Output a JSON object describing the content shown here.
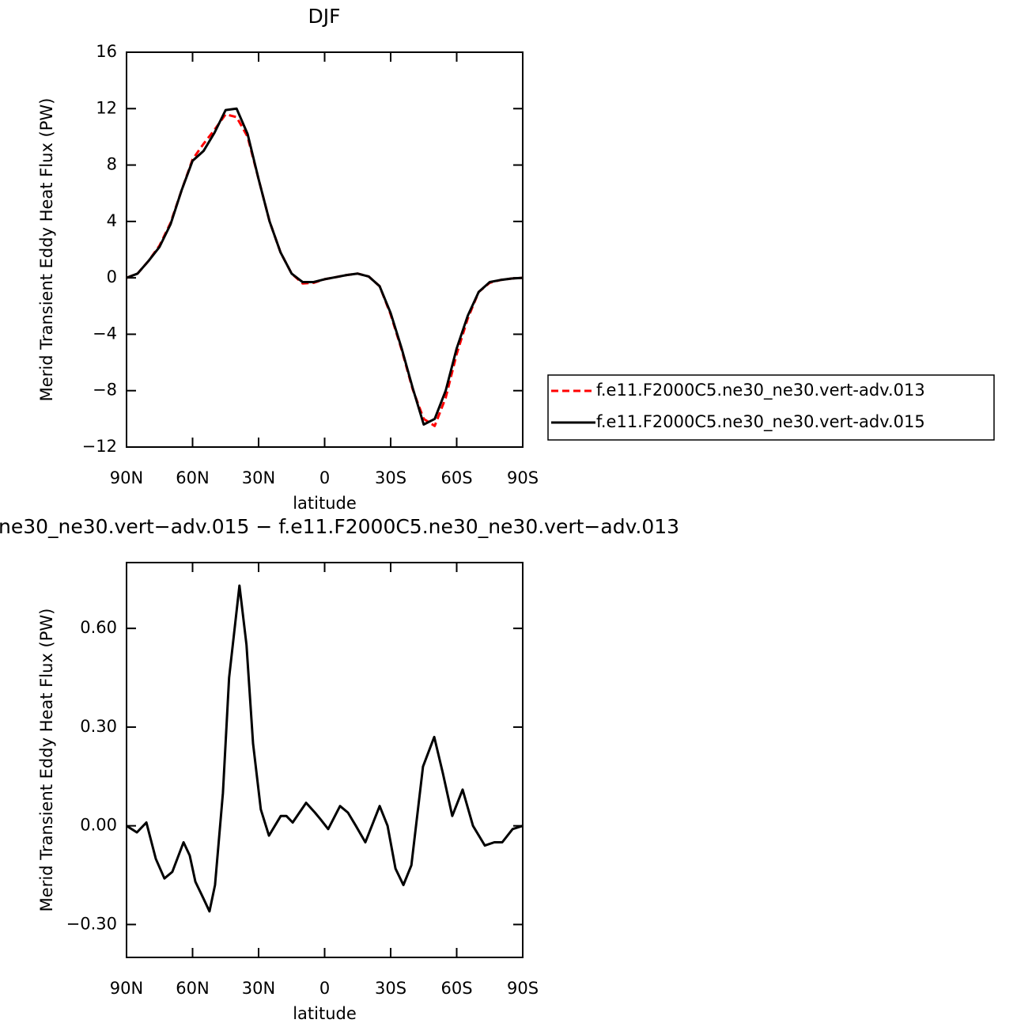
{
  "chart_data": [
    {
      "type": "line",
      "title": "DJF",
      "xlabel": "latitude",
      "ylabel": "Merid Transient Eddy Heat Flux (PW)",
      "x": [
        90,
        85,
        80,
        75,
        70,
        65,
        60,
        55,
        50,
        45,
        40,
        35,
        30,
        25,
        20,
        15,
        10,
        5,
        0,
        -5,
        -10,
        -15,
        -20,
        -25,
        -30,
        -35,
        -40,
        -45,
        -50,
        -55,
        -60,
        -65,
        -70,
        -75,
        -80,
        -85,
        -90
      ],
      "series": [
        {
          "name": "f.e11.F2000C5.ne30_ne30.vert-adv.013",
          "color": "#ff0000",
          "style": "dashed",
          "values": [
            0,
            0.3,
            1.2,
            2.3,
            3.9,
            6.2,
            8.4,
            9.5,
            10.5,
            11.6,
            11.4,
            10.0,
            7.0,
            4.0,
            1.8,
            0.3,
            -0.4,
            -0.35,
            -0.1,
            0.05,
            0.2,
            0.3,
            0.1,
            -0.6,
            -2.6,
            -5.1,
            -7.9,
            -10.0,
            -10.5,
            -8.5,
            -5.4,
            -2.9,
            -1.0,
            -0.35,
            -0.15,
            -0.05,
            0
          ]
        },
        {
          "name": "f.e11.F2000C5.ne30_ne30.vert-adv.015",
          "color": "#000000",
          "style": "solid",
          "values": [
            0,
            0.3,
            1.2,
            2.2,
            3.8,
            6.2,
            8.3,
            9.0,
            10.3,
            11.9,
            12.0,
            10.2,
            7.0,
            4.0,
            1.8,
            0.3,
            -0.3,
            -0.3,
            -0.1,
            0.05,
            0.2,
            0.3,
            0.1,
            -0.6,
            -2.5,
            -5.0,
            -7.8,
            -10.4,
            -10.0,
            -8.0,
            -5.0,
            -2.7,
            -1.0,
            -0.3,
            -0.15,
            -0.05,
            0
          ]
        }
      ],
      "xlim": [
        90,
        -90
      ],
      "xticks": [
        {
          "value": 90,
          "label": "90N"
        },
        {
          "value": 60,
          "label": "60N"
        },
        {
          "value": 30,
          "label": "30N"
        },
        0,
        {
          "value": -30,
          "label": "30S"
        },
        {
          "value": -60,
          "label": "60S"
        },
        {
          "value": -90,
          "label": "90S"
        }
      ],
      "ylim": [
        -12,
        16
      ],
      "yticks": [
        {
          "value": -12,
          "label": "−12"
        },
        {
          "value": -8,
          "label": "−8"
        },
        {
          "value": -4,
          "label": "−4"
        },
        0,
        4,
        8,
        12,
        16
      ],
      "grid": false,
      "legend": "right"
    },
    {
      "type": "line",
      "title": "ne30_ne30.vert−adv.015 − f.e11.F2000C5.ne30_ne30.vert−adv.013",
      "xlabel": "latitude",
      "ylabel": "Merid Transient Eddy Heat Flux (PW)",
      "x": [
        90,
        85.3,
        81,
        76.7,
        72.8,
        69.2,
        64.1,
        61.3,
        58.7,
        55.1,
        52.3,
        49.8,
        46.2,
        43.4,
        38.7,
        35.5,
        32.5,
        29,
        25.3,
        19.9,
        17.4,
        14.5,
        8.4,
        4.4,
        1.9,
        -1.6,
        -7,
        -10.6,
        -14.2,
        -18.5,
        -25,
        -28.6,
        -32.2,
        -35.8,
        -39.4,
        -44.7,
        -49.8,
        -53.7,
        -58,
        -62.7,
        -67.4,
        -72.8,
        -77.1,
        -80.7,
        -85.4,
        -90
      ],
      "series": [
        {
          "name": null,
          "color": "#000000",
          "style": "solid",
          "values": [
            0,
            -0.02,
            0.01,
            -0.1,
            -0.16,
            -0.14,
            -0.05,
            -0.09,
            -0.17,
            -0.22,
            -0.26,
            -0.18,
            0.1,
            0.45,
            0.73,
            0.55,
            0.25,
            0.05,
            -0.03,
            0.03,
            0.03,
            0.01,
            0.07,
            0.04,
            0.02,
            -0.01,
            0.06,
            0.04,
            0,
            -0.05,
            0.06,
            0,
            -0.13,
            -0.18,
            -0.12,
            0.18,
            0.27,
            0.16,
            0.03,
            0.11,
            0,
            -0.06,
            -0.05,
            -0.05,
            -0.01,
            0
          ]
        }
      ],
      "xlim": [
        90,
        -90
      ],
      "xticks": [
        {
          "value": 90,
          "label": "90N"
        },
        {
          "value": 60,
          "label": "60N"
        },
        {
          "value": 30,
          "label": "30N"
        },
        0,
        {
          "value": -30,
          "label": "30S"
        },
        {
          "value": -60,
          "label": "60S"
        },
        {
          "value": -90,
          "label": "90S"
        }
      ],
      "ylim": [
        -0.4,
        0.8
      ],
      "yticks": [
        {
          "value": -0.3,
          "label": "−0.30"
        },
        {
          "value": 0,
          "label": "0.00"
        },
        {
          "value": 0.3,
          "label": "0.30"
        },
        {
          "value": 0.6,
          "label": "0.60"
        }
      ],
      "grid": false
    }
  ]
}
